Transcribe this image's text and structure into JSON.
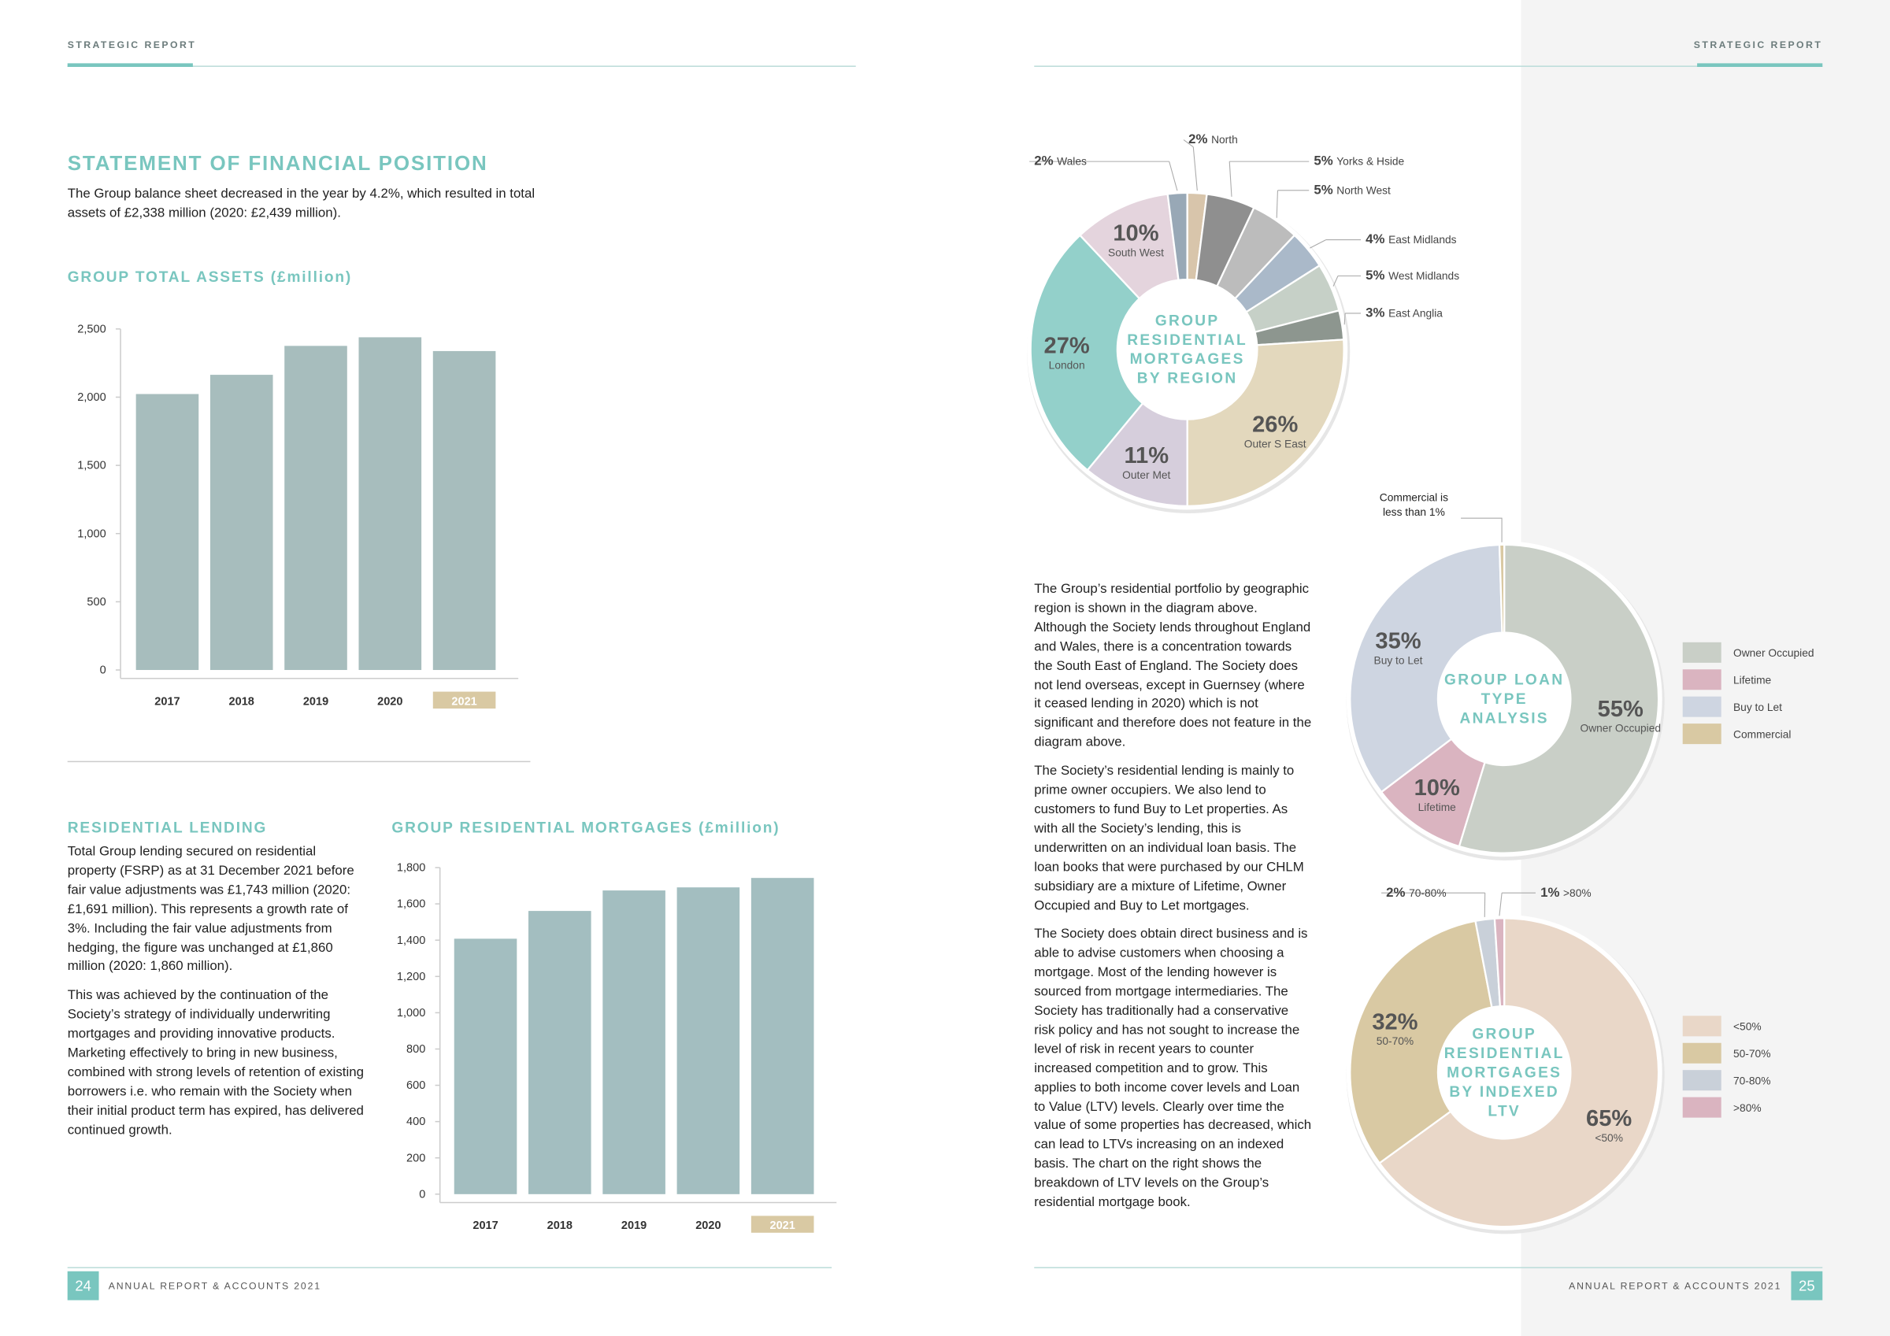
{
  "left_page": {
    "header": "STRATEGIC REPORT",
    "title": "STATEMENT OF FINANCIAL POSITION",
    "intro": "The Group balance sheet decreased in the year by 4.2%, which resulted in total assets of £2,338 million (2020: £2,439 million).",
    "lending_title": "RESIDENTIAL LENDING",
    "lending_paragraphs": [
      "Total Group lending secured on residential property (FSRP) as at 31 December 2021 before fair value adjustments was £1,743 million (2020: £1,691 million). This represents a growth rate of 3%. Including the fair value adjustments from hedging, the figure was unchanged at £1,860 million (2020: 1,860 million).",
      "This was achieved by the continuation of the Society’s strategy of individually underwriting mortgages and providing innovative products. Marketing effectively to bring in new business, combined with strong levels of retention of existing borrowers i.e. who remain with the Society when their initial product term has expired, has delivered continued growth."
    ],
    "page_number": "24",
    "footer": "ANNUAL REPORT & ACCOUNTS 2021"
  },
  "right_page": {
    "header": "STRATEGIC REPORT",
    "paragraphs": [
      "The Group’s residential portfolio by geographic region is shown in the diagram above. Although the Society lends throughout England and Wales, there is a concentration towards the South East of England. The Society does not lend overseas, except in Guernsey (where it ceased lending in 2020) which is not significant and therefore does not feature in the diagram above.",
      "The Society’s residential lending is mainly to prime owner occupiers. We also lend to customers to fund Buy to Let properties. As with all the Society’s lending, this is underwritten on an individual loan basis. The loan books that were purchased by our CHLM subsidiary are a mixture of Lifetime, Owner Occupied and Buy to Let mortgages.",
      "The Society does obtain direct business and is able to advise customers when choosing a mortgage. Most of the lending however is sourced from mortgage intermediaries. The Society has traditionally had a conservative risk policy and has not sought to increase the level of risk in recent years to counter increased competition and to grow. This applies to both income cover levels and Loan to Value (LTV) levels. Clearly over time the value of some properties has decreased, which can lead to LTVs increasing on an indexed basis. The chart on the right shows the breakdown of LTV levels on the Group’s residential mortgage book."
    ],
    "page_number": "25",
    "footer": "ANNUAL REPORT & ACCOUNTS 2021"
  },
  "chart_data": [
    {
      "type": "bar",
      "title": "GROUP TOTAL ASSETS (£million)",
      "categories": [
        "2017",
        "2018",
        "2019",
        "2020",
        "2021"
      ],
      "values": [
        2023,
        2164,
        2376,
        2439,
        2338
      ],
      "color": "#a7bdbd",
      "ylim": [
        0,
        2500
      ],
      "yticks": [
        0,
        500,
        {
          "value": 1000,
          "label": "1,000"
        },
        {
          "value": 1500,
          "label": "1,500"
        },
        {
          "value": 2000,
          "label": "2,000"
        },
        {
          "value": 2500,
          "label": "2,500"
        }
      ],
      "highlight_index": 4,
      "highlight_color": "#d9c9a3"
    },
    {
      "type": "bar",
      "title": "GROUP RESIDENTIAL MORTGAGES (£million)",
      "categories": [
        "2017",
        "2018",
        "2019",
        "2020",
        "2021"
      ],
      "values": [
        1408,
        1561,
        1674,
        1691,
        1743
      ],
      "color": "#a3bec0",
      "ylim": [
        0,
        1800
      ],
      "yticks": [
        0,
        200,
        400,
        600,
        800,
        {
          "value": 1000,
          "label": "1,000"
        },
        {
          "value": 1200,
          "label": "1,200"
        },
        {
          "value": 1400,
          "label": "1,400"
        },
        {
          "value": 1600,
          "label": "1,600"
        },
        {
          "value": 1800,
          "label": "1,800"
        }
      ],
      "highlight_index": 4,
      "highlight_color": "#d9c9a3"
    },
    {
      "type": "pie",
      "title": "GROUP RESIDENTIAL MORTGAGES BY REGION",
      "categories": [
        "North",
        "Yorks & Hside",
        "North West",
        "East Midlands",
        "West Midlands",
        "East Anglia",
        "Outer S East",
        "Outer Met",
        "London",
        "South West",
        "Wales"
      ],
      "values": [
        2,
        5,
        5,
        4,
        5,
        3,
        26,
        11,
        27,
        10,
        2
      ],
      "value_labels": [
        "2%",
        "5%",
        "5%",
        "4%",
        "5%",
        "3%",
        "26%",
        "11%",
        "27%",
        "10%",
        "2%"
      ],
      "colors": [
        "#d8c5ab",
        "#8f8f8f",
        "#bcbcbc",
        "#aab9c9",
        "#c6d0c7",
        "#8d968f",
        "#e3d8bd",
        "#d6cedc",
        "#93d0ca",
        "#e4d4dd",
        "#98a8b6"
      ]
    },
    {
      "type": "pie",
      "title": "GROUP LOAN TYPE ANALYSIS",
      "categories": [
        "Owner Occupied",
        "Lifetime",
        "Buy to Let",
        "Commercial"
      ],
      "values": [
        55,
        10,
        35,
        0.5
      ],
      "value_labels": [
        "55%",
        "10%",
        "35%",
        null
      ],
      "colors": [
        "#c9cfc7",
        "#dab4c0",
        "#ced5e1",
        "#d9c9a3"
      ],
      "annotation": "Commercial is less than 1%",
      "legend": "right"
    },
    {
      "type": "pie",
      "title": "GROUP RESIDENTIAL MORTGAGES BY INDEXED LTV",
      "categories": [
        "<50%",
        "50-70%",
        "70-80%",
        ">80%"
      ],
      "values": [
        65,
        32,
        2,
        1
      ],
      "value_labels": [
        "65%",
        "32%",
        "2%",
        "1%"
      ],
      "colors": [
        "#e9d7c8",
        "#d9c9a3",
        "#c9d0d9",
        "#dab4c0"
      ],
      "legend": "right"
    }
  ]
}
